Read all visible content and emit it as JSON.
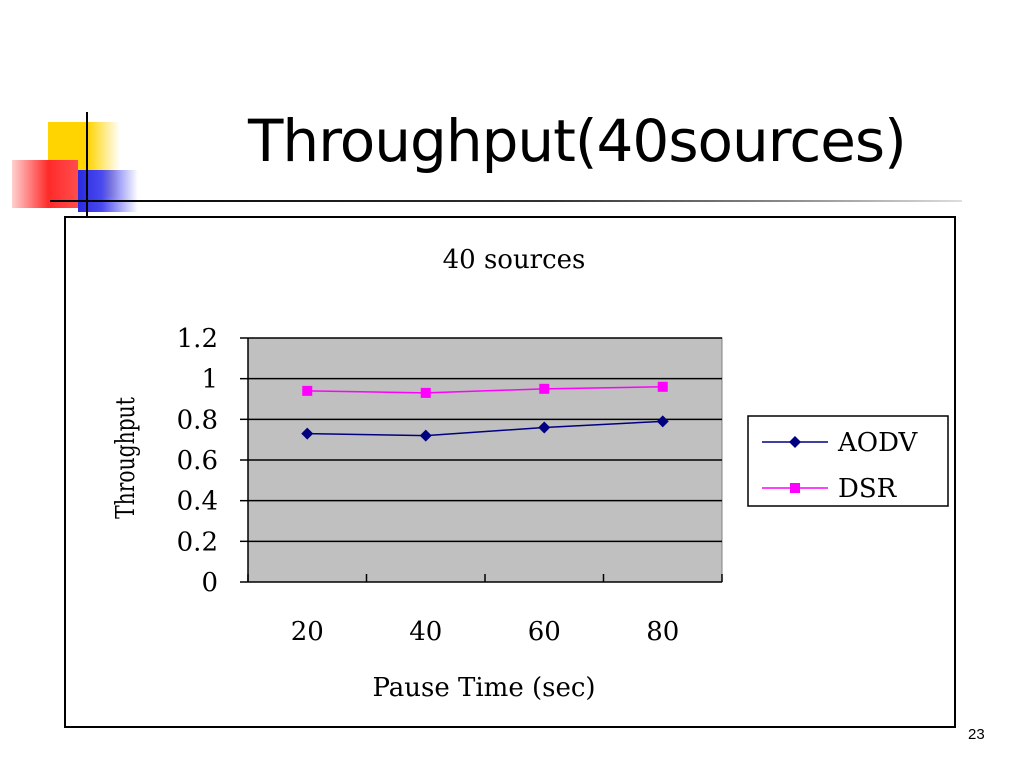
{
  "slide": {
    "title": "Throughput(40sources)",
    "page_number": "23"
  },
  "chart_data": {
    "type": "line",
    "title": "40 sources",
    "xlabel": "Pause Time (sec)",
    "ylabel": "Throughput",
    "categories": [
      "20",
      "40",
      "60",
      "80"
    ],
    "ylim": [
      0,
      1.2
    ],
    "yticks": [
      "0",
      "0.2",
      "0.4",
      "0.6",
      "0.8",
      "1",
      "1.2"
    ],
    "grid": true,
    "legend_position": "right",
    "series": [
      {
        "name": "AODV",
        "values": [
          0.73,
          0.72,
          0.76,
          0.79
        ],
        "color": "#000080",
        "marker": "diamond"
      },
      {
        "name": "DSR",
        "values": [
          0.94,
          0.93,
          0.95,
          0.96
        ],
        "color": "#ff00ff",
        "marker": "square"
      }
    ],
    "plot_background": "#c0c0c0"
  }
}
